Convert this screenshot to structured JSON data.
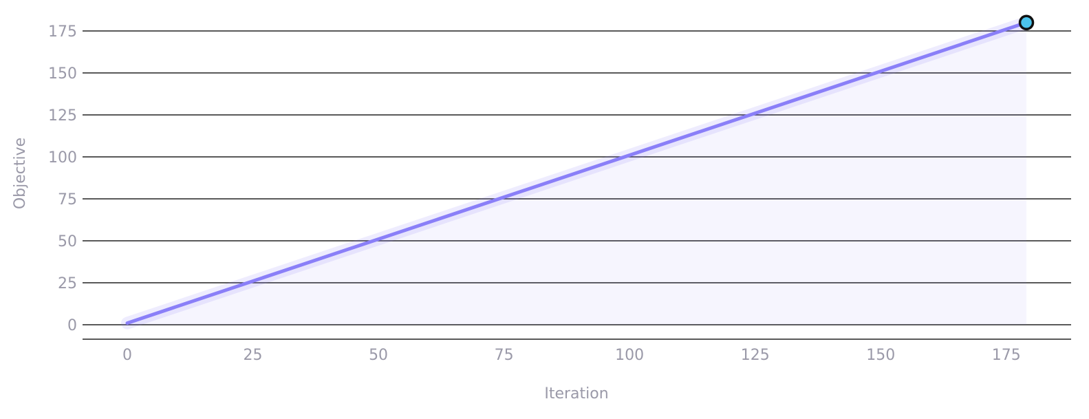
{
  "chart_data": {
    "type": "line",
    "x_label": "Iteration",
    "y_label": "Objective",
    "x": [
      0,
      179
    ],
    "values": [
      1,
      180
    ],
    "color": "#8a7ff8",
    "marker_color": "#4cc3ec",
    "xlim": [
      -8.9,
      187.9
    ],
    "xticks": [
      0,
      25,
      50,
      75,
      100,
      125,
      150,
      175
    ],
    "ylim": [
      -8.6,
      185
    ],
    "yticks": [
      0,
      25,
      50,
      75,
      100,
      125,
      150,
      175
    ],
    "grid": true
  }
}
